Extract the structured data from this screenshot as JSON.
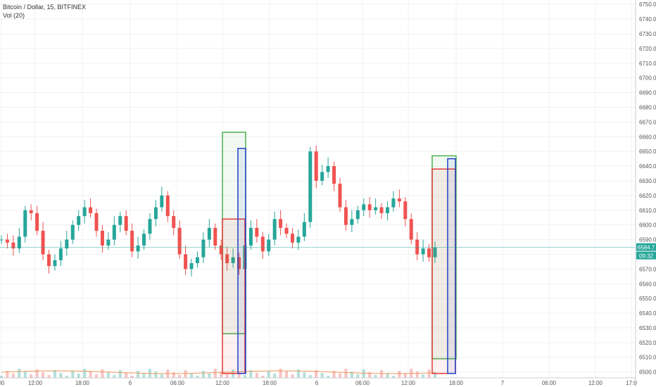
{
  "header": {
    "symbol_line": "Bitcoin / Dollar, 15, BITFINEX",
    "volume_line": "Vol (20)"
  },
  "price_badge": {
    "value": "6584.7",
    "countdown": "09:32",
    "color": "#26a69a"
  },
  "colors": {
    "up": "#26a69a",
    "down": "#ef5350",
    "grid": "#eef1f5",
    "volume_ma": "#f59b5b"
  },
  "chart_data": {
    "type": "candlestick",
    "title": "Bitcoin / Dollar, 15, BITFINEX",
    "yaxis": {
      "range": [
        6496,
        6752
      ],
      "ticks": [
        6750,
        6740,
        6730,
        6720,
        6710,
        6700,
        6690,
        6680,
        6670,
        6660,
        6650,
        6640,
        6630,
        6620,
        6610,
        6600,
        6590,
        6580,
        6570,
        6560,
        6550,
        6540,
        6530,
        6520,
        6510,
        6500
      ]
    },
    "xaxis": {
      "ticks": [
        "00",
        "12:00",
        "18:00",
        "6",
        "06:00",
        "12:00",
        "18:00",
        "6",
        "06:00",
        "12:00",
        "18:00",
        "7",
        "06:00",
        "12:00",
        "17:0"
      ]
    },
    "last_price": 6584.7,
    "close_series": [
      6590,
      6588,
      6584,
      6592,
      6610,
      6608,
      6596,
      6580,
      6572,
      6576,
      6584,
      6590,
      6600,
      6606,
      6612,
      6608,
      6596,
      6586,
      6590,
      6600,
      6606,
      6596,
      6582,
      6586,
      6594,
      6604,
      6612,
      6620,
      6606,
      6598,
      6580,
      6570,
      6574,
      6578,
      6590,
      6598,
      6586,
      6580,
      6574,
      6578,
      6570,
      6586,
      6598,
      6592,
      6582,
      6590,
      6604,
      6598,
      6594,
      6588,
      6592,
      6602,
      6650,
      6630,
      6636,
      6640,
      6628,
      6612,
      6600,
      6604,
      6610,
      6614,
      6610,
      6612,
      6608,
      6612,
      6618,
      6616,
      6604,
      6590,
      6580,
      6584,
      6578,
      6584.7
    ],
    "annotations": [
      {
        "type": "rect",
        "name": "box-1-green",
        "color": "#4caf50",
        "y1": 6663,
        "y2": 6526
      },
      {
        "type": "rect",
        "name": "box-1-red",
        "color": "#e53935",
        "y1": 6604,
        "y2": 6499
      },
      {
        "type": "rect",
        "name": "box-1-blue",
        "color": "#1e40c8",
        "y1": 6652,
        "y2": 6499
      },
      {
        "type": "rect",
        "name": "box-2-green",
        "color": "#4caf50",
        "y1": 6647,
        "y2": 6509
      },
      {
        "type": "rect",
        "name": "box-2-red",
        "color": "#e53935",
        "y1": 6638,
        "y2": 6499
      },
      {
        "type": "rect",
        "name": "box-2-blue",
        "color": "#1e40c8",
        "y1": 6645,
        "y2": 6499
      }
    ]
  }
}
